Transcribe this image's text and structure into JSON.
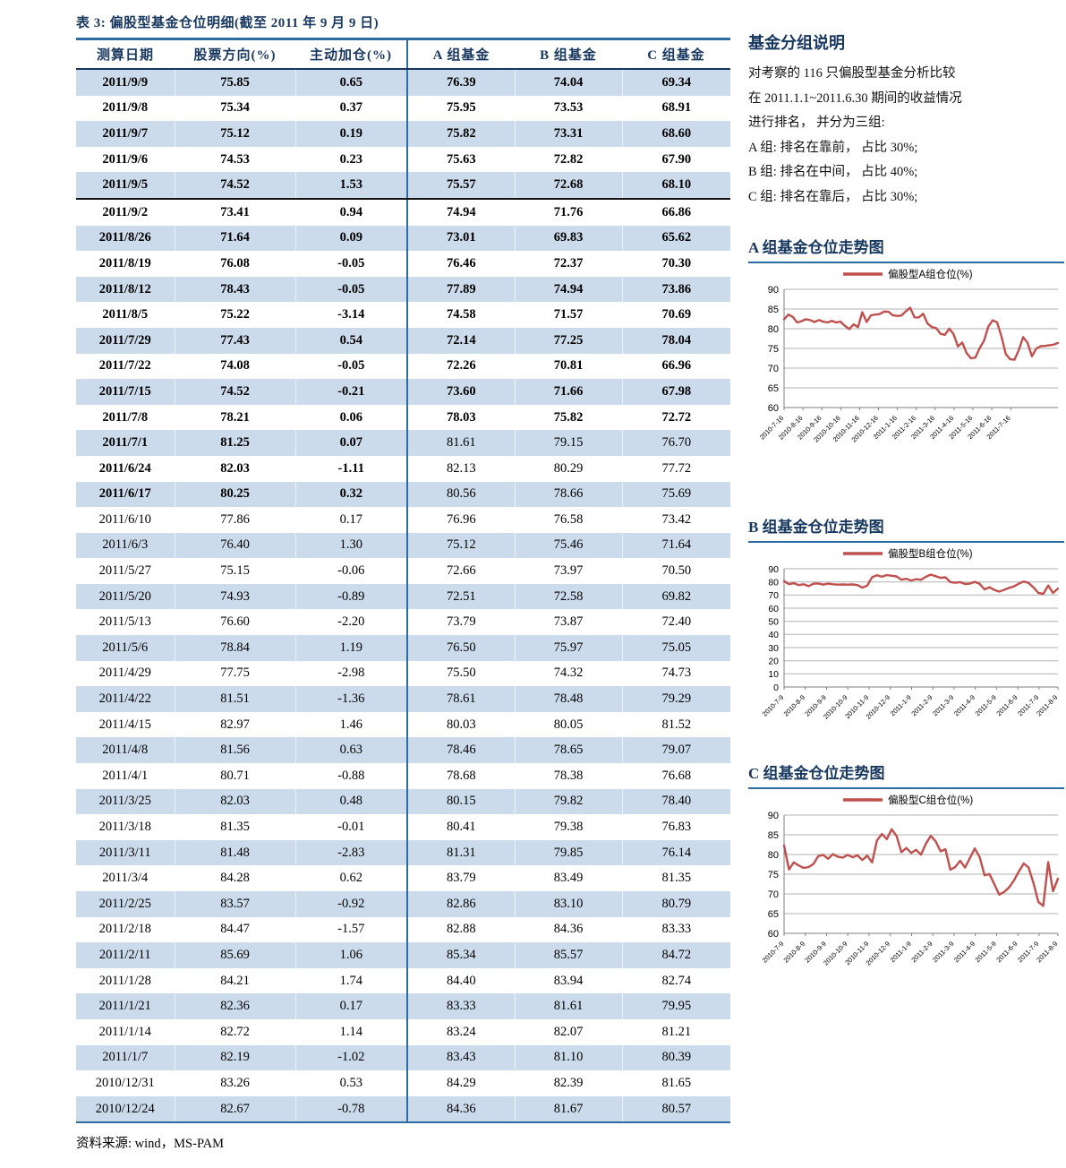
{
  "colors": {
    "accent_blue": "#2d6ca2",
    "header_navy": "#17375e",
    "stripe_blue": "#ccdbeb",
    "line_red": "#c0504d"
  },
  "table": {
    "title": "表 3:  偏股型基金仓位明细(截至 2011 年 9 月 9 日)",
    "columns": [
      "测算日期",
      "股票方向(%)",
      "主动加仓(%)",
      "A 组基金",
      "B 组基金",
      "C 组基金"
    ],
    "bold_all_until": 13,
    "bold_left_until": 16,
    "divider_after": 4,
    "rows": [
      [
        "2011/9/9",
        "75.85",
        "0.65",
        "76.39",
        "74.04",
        "69.34"
      ],
      [
        "2011/9/8",
        "75.34",
        "0.37",
        "75.95",
        "73.53",
        "68.91"
      ],
      [
        "2011/9/7",
        "75.12",
        "0.19",
        "75.82",
        "73.31",
        "68.60"
      ],
      [
        "2011/9/6",
        "74.53",
        "0.23",
        "75.63",
        "72.82",
        "67.90"
      ],
      [
        "2011/9/5",
        "74.52",
        "1.53",
        "75.57",
        "72.68",
        "68.10"
      ],
      [
        "2011/9/2",
        "73.41",
        "0.94",
        "74.94",
        "71.76",
        "66.86"
      ],
      [
        "2011/8/26",
        "71.64",
        "0.09",
        "73.01",
        "69.83",
        "65.62"
      ],
      [
        "2011/8/19",
        "76.08",
        "-0.05",
        "76.46",
        "72.37",
        "70.30"
      ],
      [
        "2011/8/12",
        "78.43",
        "-0.05",
        "77.89",
        "74.94",
        "73.86"
      ],
      [
        "2011/8/5",
        "75.22",
        "-3.14",
        "74.58",
        "71.57",
        "70.69"
      ],
      [
        "2011/7/29",
        "77.43",
        "0.54",
        "72.14",
        "77.25",
        "78.04"
      ],
      [
        "2011/7/22",
        "74.08",
        "-0.05",
        "72.26",
        "70.81",
        "66.96"
      ],
      [
        "2011/7/15",
        "74.52",
        "-0.21",
        "73.60",
        "71.66",
        "67.98"
      ],
      [
        "2011/7/8",
        "78.21",
        "0.06",
        "78.03",
        "75.82",
        "72.72"
      ],
      [
        "2011/7/1",
        "81.25",
        "0.07",
        "81.61",
        "79.15",
        "76.70"
      ],
      [
        "2011/6/24",
        "82.03",
        "-1.11",
        "82.13",
        "80.29",
        "77.72"
      ],
      [
        "2011/6/17",
        "80.25",
        "0.32",
        "80.56",
        "78.66",
        "75.69"
      ],
      [
        "2011/6/10",
        "77.86",
        "0.17",
        "76.96",
        "76.58",
        "73.42"
      ],
      [
        "2011/6/3",
        "76.40",
        "1.30",
        "75.12",
        "75.46",
        "71.64"
      ],
      [
        "2011/5/27",
        "75.15",
        "-0.06",
        "72.66",
        "73.97",
        "70.50"
      ],
      [
        "2011/5/20",
        "74.93",
        "-0.89",
        "72.51",
        "72.58",
        "69.82"
      ],
      [
        "2011/5/13",
        "76.60",
        "-2.20",
        "73.79",
        "73.87",
        "72.40"
      ],
      [
        "2011/5/6",
        "78.84",
        "1.19",
        "76.50",
        "75.97",
        "75.05"
      ],
      [
        "2011/4/29",
        "77.75",
        "-2.98",
        "75.50",
        "74.32",
        "74.73"
      ],
      [
        "2011/4/22",
        "81.51",
        "-1.36",
        "78.61",
        "78.48",
        "79.29"
      ],
      [
        "2011/4/15",
        "82.97",
        "1.46",
        "80.03",
        "80.05",
        "81.52"
      ],
      [
        "2011/4/8",
        "81.56",
        "0.63",
        "78.46",
        "78.65",
        "79.07"
      ],
      [
        "2011/4/1",
        "80.71",
        "-0.88",
        "78.68",
        "78.38",
        "76.68"
      ],
      [
        "2011/3/25",
        "82.03",
        "0.48",
        "80.15",
        "79.82",
        "78.40"
      ],
      [
        "2011/3/18",
        "81.35",
        "-0.01",
        "80.41",
        "79.38",
        "76.83"
      ],
      [
        "2011/3/11",
        "81.48",
        "-2.83",
        "81.31",
        "79.85",
        "76.14"
      ],
      [
        "2011/3/4",
        "84.28",
        "0.62",
        "83.79",
        "83.49",
        "81.35"
      ],
      [
        "2011/2/25",
        "83.57",
        "-0.92",
        "82.86",
        "83.10",
        "80.79"
      ],
      [
        "2011/2/18",
        "84.47",
        "-1.57",
        "82.88",
        "84.36",
        "83.33"
      ],
      [
        "2011/2/11",
        "85.69",
        "1.06",
        "85.34",
        "85.57",
        "84.72"
      ],
      [
        "2011/1/28",
        "84.21",
        "1.74",
        "84.40",
        "83.94",
        "82.74"
      ],
      [
        "2011/1/21",
        "82.36",
        "0.17",
        "83.33",
        "81.61",
        "79.95"
      ],
      [
        "2011/1/14",
        "82.72",
        "1.14",
        "83.24",
        "82.07",
        "81.21"
      ],
      [
        "2011/1/7",
        "82.19",
        "-1.02",
        "83.43",
        "81.10",
        "80.39"
      ],
      [
        "2010/12/31",
        "83.26",
        "0.53",
        "84.29",
        "82.39",
        "81.65"
      ],
      [
        "2010/12/24",
        "82.67",
        "-0.78",
        "84.36",
        "81.67",
        "80.57"
      ]
    ],
    "source": "资料来源:  wind，MS-PAM"
  },
  "sidebar": {
    "group_note": {
      "heading": "基金分组说明",
      "lines": [
        "对考察的 116 只偏股型基金分析比较",
        "在 2011.1.1~2011.6.30 期间的收益情况",
        "进行排名， 并分为三组:",
        "A 组:  排名在靠前， 占比 30%;",
        "B 组:  排名在中间， 占比 40%;",
        "C 组:  排名在靠后， 占比 30%;"
      ]
    }
  },
  "chart_data": [
    {
      "type": "line",
      "title": "A 组基金仓位走势图",
      "legend": "偏股型A组仓位(%)",
      "line_color": "#c0504d",
      "ylim": [
        60,
        90
      ],
      "ytick_step": 5,
      "grid": true,
      "legend_position": "top",
      "tick_interval_points": 4.345,
      "x_ticklabels": [
        "2010-7-16",
        "2010-8-16",
        "2010-9-16",
        "2010-10-16",
        "2010-11-16",
        "2010-12-16",
        "2011-1-16",
        "2011-2-16",
        "2011-3-16",
        "2011-4-16",
        "2011-5-16",
        "2011-6-16",
        "2011-7-16"
      ],
      "values": [
        82.4,
        83.6,
        83.0,
        81.6,
        81.9,
        82.4,
        82.2,
        81.7,
        82.2,
        81.8,
        81.6,
        82.0,
        81.6,
        81.8,
        80.7,
        79.9,
        81.1,
        80.4,
        84.2,
        81.7,
        83.4,
        83.6,
        83.7,
        84.36,
        84.29,
        83.43,
        83.24,
        83.33,
        84.4,
        85.34,
        82.88,
        82.86,
        83.79,
        81.31,
        80.41,
        80.15,
        78.68,
        78.46,
        80.03,
        78.61,
        75.5,
        76.5,
        73.79,
        72.51,
        72.66,
        75.12,
        76.96,
        80.56,
        82.13,
        81.61,
        78.03,
        73.6,
        72.26,
        72.14,
        74.58,
        77.89,
        76.46,
        73.01,
        74.94,
        75.57,
        75.63,
        75.82,
        75.95,
        76.39
      ]
    },
    {
      "type": "line",
      "title": "B 组基金仓位走势图",
      "legend": "偏股型B组仓位(%)",
      "line_color": "#c0504d",
      "ylim": [
        0,
        90
      ],
      "ytick_step": 10,
      "grid": true,
      "legend_position": "top",
      "tick_interval_points": 4.345,
      "x_ticklabels": [
        "2010-7-9",
        "2010-8-9",
        "2010-9-9",
        "2010-10-9",
        "2010-11-9",
        "2010-12-9",
        "2011-1-9",
        "2011-2-9",
        "2011-3-9",
        "2011-4-9",
        "2011-5-9",
        "2011-6-9",
        "2011-7-9",
        "2011-8-9"
      ],
      "values": [
        80.6,
        78.3,
        79.0,
        77.6,
        78.2,
        76.8,
        78.6,
        78.8,
        77.9,
        78.7,
        78.2,
        77.9,
        78.1,
        77.9,
        78.1,
        77.6,
        75.7,
        77.2,
        83.6,
        85.1,
        83.9,
        85.2,
        84.7,
        84.2,
        81.67,
        82.39,
        81.1,
        82.07,
        81.61,
        83.94,
        85.57,
        84.36,
        83.1,
        83.49,
        79.85,
        79.38,
        79.82,
        78.38,
        78.65,
        80.05,
        78.48,
        74.32,
        75.97,
        73.87,
        72.58,
        73.97,
        75.46,
        76.58,
        78.66,
        80.29,
        79.15,
        75.82,
        71.66,
        70.81,
        77.25,
        71.57,
        74.94
      ]
    },
    {
      "type": "line",
      "title": "C 组基金仓位走势图",
      "legend": "偏股型C组仓位(%)",
      "line_color": "#c0504d",
      "ylim": [
        60,
        90
      ],
      "ytick_step": 5,
      "grid": true,
      "legend_position": "top",
      "tick_interval_points": 4.345,
      "x_ticklabels": [
        "2010-7-9",
        "2010-8-9",
        "2010-9-9",
        "2010-10-9",
        "2010-11-9",
        "2010-12-9",
        "2011-1-9",
        "2011-2-9",
        "2011-3-9",
        "2011-4-9",
        "2011-5-9",
        "2011-6-9",
        "2011-7-9",
        "2011-8-9"
      ],
      "values": [
        82.3,
        76.2,
        78.0,
        77.2,
        76.6,
        76.8,
        77.6,
        79.6,
        79.9,
        78.9,
        80.1,
        79.4,
        79.2,
        79.9,
        79.3,
        79.8,
        78.6,
        79.7,
        78.0,
        83.6,
        85.2,
        83.9,
        86.4,
        84.7,
        80.57,
        81.65,
        80.39,
        81.21,
        79.95,
        82.74,
        84.72,
        83.33,
        80.79,
        81.35,
        76.14,
        76.83,
        78.4,
        76.68,
        79.07,
        81.52,
        79.29,
        74.73,
        75.05,
        72.4,
        69.82,
        70.5,
        71.64,
        73.42,
        75.69,
        77.72,
        76.7,
        72.72,
        67.98,
        66.96,
        78.04,
        70.69,
        73.86
      ]
    }
  ]
}
